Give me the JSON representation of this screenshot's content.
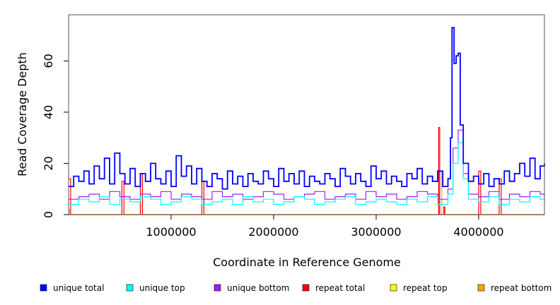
{
  "chart_data": {
    "type": "line",
    "title": "",
    "xlabel": "Coordinate in Reference Genome",
    "ylabel": "Read Coverage Depth",
    "xlim": [
      0,
      4641652
    ],
    "ylim": [
      0,
      78
    ],
    "x_ticks": [
      {
        "value": 1000000,
        "label": "1000000"
      },
      {
        "value": 2000000,
        "label": "2000000"
      },
      {
        "value": 3000000,
        "label": "3000000"
      },
      {
        "value": 4000000,
        "label": "4000000"
      }
    ],
    "y_ticks": [
      {
        "value": 0,
        "label": "0"
      },
      {
        "value": 20,
        "label": "20"
      },
      {
        "value": 40,
        "label": "40"
      },
      {
        "value": 60,
        "label": "60"
      }
    ],
    "grid": false,
    "legend_position": "bottom",
    "series": [
      {
        "name": "unique total",
        "color": "#0000ff",
        "x": [
          0,
          50000,
          100000,
          150000,
          200000,
          250000,
          300000,
          350000,
          400000,
          450000,
          500000,
          550000,
          600000,
          650000,
          700000,
          750000,
          800000,
          850000,
          900000,
          950000,
          1000000,
          1050000,
          1100000,
          1150000,
          1200000,
          1250000,
          1300000,
          1350000,
          1400000,
          1450000,
          1500000,
          1550000,
          1600000,
          1650000,
          1700000,
          1750000,
          1800000,
          1850000,
          1900000,
          1950000,
          2000000,
          2050000,
          2100000,
          2150000,
          2200000,
          2250000,
          2300000,
          2350000,
          2400000,
          2450000,
          2500000,
          2550000,
          2600000,
          2650000,
          2700000,
          2750000,
          2800000,
          2850000,
          2900000,
          2950000,
          3000000,
          3050000,
          3100000,
          3150000,
          3200000,
          3250000,
          3300000,
          3350000,
          3400000,
          3450000,
          3500000,
          3550000,
          3600000,
          3650000,
          3700000,
          3725000,
          3740000,
          3760000,
          3780000,
          3800000,
          3820000,
          3850000,
          3900000,
          3950000,
          4000000,
          4050000,
          4100000,
          4150000,
          4200000,
          4250000,
          4300000,
          4350000,
          4400000,
          4450000,
          4500000,
          4550000,
          4600000,
          4641652
        ],
        "y": [
          11,
          15,
          13,
          17,
          12,
          19,
          14,
          22,
          12,
          24,
          16,
          12,
          18,
          11,
          16,
          13,
          20,
          14,
          12,
          17,
          11,
          23,
          15,
          19,
          12,
          18,
          13,
          11,
          16,
          14,
          10,
          17,
          12,
          15,
          11,
          16,
          13,
          12,
          17,
          14,
          11,
          18,
          13,
          16,
          12,
          17,
          11,
          15,
          13,
          12,
          16,
          14,
          11,
          18,
          15,
          12,
          16,
          13,
          11,
          19,
          14,
          17,
          12,
          15,
          13,
          11,
          16,
          14,
          18,
          12,
          15,
          13,
          17,
          11,
          14,
          30,
          73,
          59,
          62,
          63,
          35,
          20,
          13,
          15,
          12,
          16,
          11,
          14,
          12,
          17,
          13,
          16,
          20,
          15,
          22,
          14,
          19,
          20
        ]
      },
      {
        "name": "unique top",
        "color": "#00ffff",
        "x": [
          0,
          100000,
          200000,
          300000,
          400000,
          500000,
          600000,
          700000,
          800000,
          900000,
          1000000,
          1100000,
          1200000,
          1300000,
          1400000,
          1500000,
          1600000,
          1700000,
          1800000,
          1900000,
          2000000,
          2100000,
          2200000,
          2300000,
          2400000,
          2500000,
          2600000,
          2700000,
          2800000,
          2900000,
          3000000,
          3100000,
          3200000,
          3300000,
          3400000,
          3500000,
          3600000,
          3700000,
          3750000,
          3800000,
          3850000,
          3900000,
          4000000,
          4100000,
          4200000,
          4300000,
          4400000,
          4500000,
          4600000,
          4641652
        ],
        "y": [
          4,
          6,
          5,
          7,
          4,
          6,
          5,
          7,
          6,
          4,
          5,
          7,
          6,
          4,
          5,
          6,
          4,
          7,
          5,
          6,
          4,
          5,
          7,
          6,
          4,
          5,
          6,
          7,
          4,
          5,
          6,
          5,
          4,
          6,
          5,
          7,
          4,
          8,
          20,
          28,
          14,
          6,
          5,
          7,
          4,
          6,
          5,
          7,
          6,
          5
        ]
      },
      {
        "name": "unique bottom",
        "color": "#a020f0",
        "x": [
          0,
          100000,
          200000,
          300000,
          400000,
          500000,
          600000,
          700000,
          800000,
          900000,
          1000000,
          1100000,
          1200000,
          1300000,
          1400000,
          1500000,
          1600000,
          1700000,
          1800000,
          1900000,
          2000000,
          2100000,
          2200000,
          2300000,
          2400000,
          2500000,
          2600000,
          2700000,
          2800000,
          2900000,
          3000000,
          3100000,
          3200000,
          3300000,
          3400000,
          3500000,
          3600000,
          3700000,
          3750000,
          3800000,
          3850000,
          3900000,
          4000000,
          4100000,
          4200000,
          4300000,
          4400000,
          4500000,
          4600000,
          4641652
        ],
        "y": [
          6,
          7,
          8,
          6,
          9,
          7,
          6,
          8,
          7,
          9,
          6,
          8,
          7,
          6,
          9,
          7,
          8,
          6,
          7,
          9,
          8,
          6,
          7,
          8,
          9,
          6,
          7,
          8,
          6,
          9,
          7,
          8,
          6,
          7,
          9,
          8,
          6,
          10,
          26,
          33,
          16,
          8,
          7,
          9,
          6,
          8,
          7,
          9,
          8,
          7
        ]
      },
      {
        "name": "repeat total",
        "color": "#ff0000",
        "x": [
          0,
          20000,
          40000,
          100000,
          520000,
          540000,
          700000,
          720000,
          1000000,
          1300000,
          1320000,
          2000000,
          3200000,
          3580000,
          3610000,
          3620000,
          3640000,
          3660000,
          3670000,
          3700000,
          4000000,
          4020000,
          4200000,
          4220000,
          4641652
        ],
        "y": [
          14,
          0,
          0,
          0,
          13,
          0,
          16,
          0,
          0,
          13,
          0,
          0,
          0,
          0,
          34,
          0,
          0,
          3,
          0,
          0,
          17,
          0,
          14,
          0,
          0
        ]
      },
      {
        "name": "repeat top",
        "color": "#ffff00",
        "x": [
          0,
          4641652
        ],
        "y": [
          0,
          0
        ]
      },
      {
        "name": "repeat bottom",
        "color": "#ffa500",
        "x": [
          0,
          10000,
          20000,
          3600000,
          3620000,
          3640000,
          4641652
        ],
        "y": [
          2,
          0,
          0,
          0,
          17,
          0,
          0
        ]
      }
    ]
  }
}
